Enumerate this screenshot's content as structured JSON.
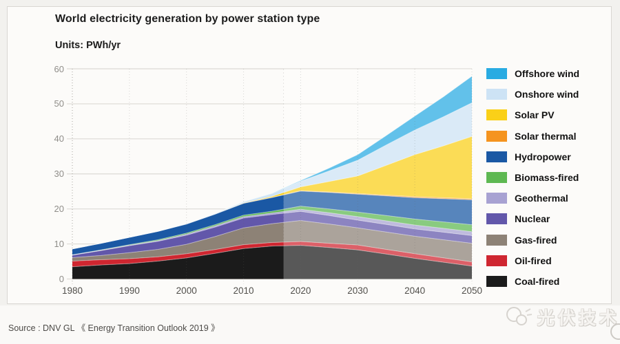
{
  "chart_data": {
    "type": "area",
    "title": "World electricity generation by power station type",
    "units_label": "Units: PWh/yr",
    "xlabel": "",
    "ylabel": "PWh/yr",
    "ylim": [
      0,
      60
    ],
    "x_ticks": [
      1980,
      1990,
      2000,
      2010,
      2020,
      2030,
      2040,
      2050
    ],
    "y_ticks": [
      0,
      10,
      20,
      30,
      40,
      50,
      60
    ],
    "grid": true,
    "legend_position": "right",
    "forecast_start_year": 2017,
    "years": [
      1980,
      1985,
      1990,
      1995,
      2000,
      2005,
      2010,
      2015,
      2020,
      2025,
      2030,
      2035,
      2040,
      2045,
      2050
    ],
    "series": [
      {
        "key": "coal-fired",
        "name": "Coal-fired",
        "color": "#1b1b1b",
        "values": [
          3.5,
          4.0,
          4.4,
          5.1,
          6.0,
          7.3,
          8.7,
          9.4,
          9.6,
          9.0,
          8.3,
          7.1,
          5.9,
          4.8,
          3.7
        ]
      },
      {
        "key": "oil-fired",
        "name": "Oil-fired",
        "color": "#cf2630",
        "values": [
          1.6,
          1.5,
          1.4,
          1.25,
          1.2,
          1.1,
          1.1,
          1.0,
          1.1,
          1.2,
          1.4,
          1.35,
          1.3,
          1.25,
          1.2
        ]
      },
      {
        "key": "gas-fired",
        "name": "Gas-fired",
        "color": "#8d8276",
        "values": [
          1.0,
          1.2,
          1.7,
          2.1,
          2.7,
          3.7,
          4.8,
          5.4,
          6.0,
          5.5,
          4.9,
          4.95,
          5.0,
          5.15,
          5.3
        ]
      },
      {
        "key": "nuclear",
        "name": "Nuclear",
        "color": "#6257aa",
        "values": [
          0.7,
          1.4,
          2.0,
          2.3,
          2.6,
          2.7,
          2.8,
          2.6,
          2.6,
          2.4,
          2.2,
          2.15,
          2.1,
          2.15,
          2.2
        ]
      },
      {
        "key": "geothermal",
        "name": "Geothermal",
        "color": "#a8a2d2",
        "values": [
          0.05,
          0.1,
          0.15,
          0.2,
          0.3,
          0.35,
          0.4,
          0.45,
          0.6,
          0.8,
          1.0,
          1.05,
          1.1,
          1.1,
          1.1
        ]
      },
      {
        "key": "biomass-fired",
        "name": "Biomass-fired",
        "color": "#5eb852",
        "values": [
          0.05,
          0.1,
          0.15,
          0.25,
          0.3,
          0.35,
          0.4,
          0.5,
          0.9,
          1.1,
          1.3,
          1.5,
          1.7,
          1.85,
          2.0
        ]
      },
      {
        "key": "hydropower",
        "name": "Hydropower",
        "color": "#1a58a4",
        "values": [
          1.7,
          1.9,
          2.1,
          2.4,
          2.6,
          3.0,
          3.4,
          3.9,
          4.3,
          4.7,
          5.1,
          5.6,
          6.1,
          6.6,
          7.1
        ]
      },
      {
        "key": "solar-thermal",
        "name": "Solar thermal",
        "color": "#f5941f",
        "values": [
          0,
          0,
          0,
          0,
          0,
          0.01,
          0.02,
          0.08,
          0.1,
          0.15,
          0.2,
          0.25,
          0.3,
          0.3,
          0.3
        ]
      },
      {
        "key": "solar-pv",
        "name": "Solar PV",
        "color": "#fad018",
        "values": [
          0,
          0,
          0,
          0,
          0.01,
          0.02,
          0.1,
          0.25,
          1.1,
          3.0,
          5.0,
          8.5,
          12.0,
          14.8,
          17.8
        ]
      },
      {
        "key": "onshore-wind",
        "name": "Onshore wind",
        "color": "#cde3f5",
        "values": [
          0,
          0,
          0.01,
          0.05,
          0.1,
          0.2,
          0.3,
          0.8,
          1.6,
          3.0,
          4.5,
          5.8,
          7.0,
          8.3,
          9.6
        ]
      },
      {
        "key": "offshore-wind",
        "name": "Offshore wind",
        "color": "#29abe2",
        "values": [
          0,
          0,
          0,
          0,
          0,
          0,
          0.01,
          0.05,
          0.2,
          0.8,
          1.6,
          2.7,
          4.0,
          5.7,
          7.6
        ]
      }
    ],
    "colors": {
      "grid_line": "#dcdad5",
      "grid_dot": "#b9b6b1",
      "panel_background": "#fcfbf9",
      "forecast_overlay": "rgba(255,255,255,0.27)"
    }
  },
  "footer": {
    "source": "Source : DNV GL 《 Energy Transition Outlook 2019 》",
    "watermark": "光伏技术"
  }
}
